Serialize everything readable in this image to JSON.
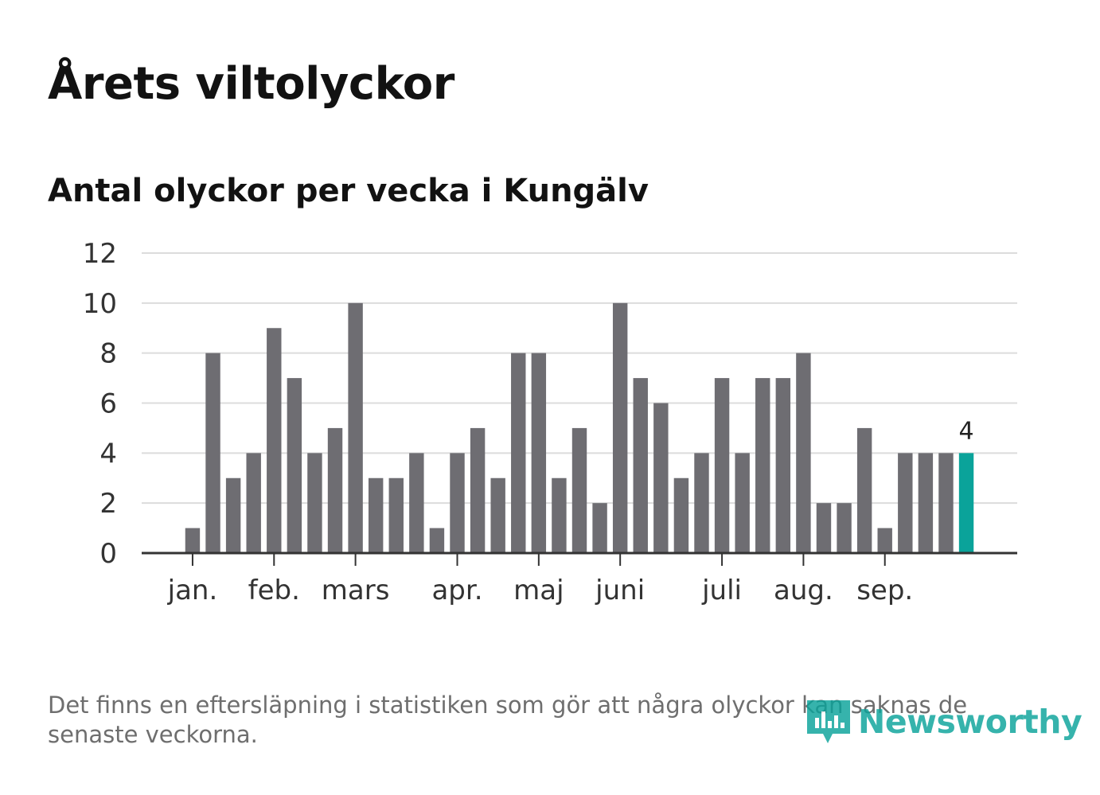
{
  "title": "Årets viltolyckor",
  "subtitle": "Antal olyckor per vecka i Kungälv",
  "footnote": "Det finns en eftersläpning i statistiken som gör att några olyckor kan saknas de senaste veckorna.",
  "brand": {
    "name": "Newsworthy",
    "icon": "newsworthy-logo-icon",
    "color": "#0aa39a"
  },
  "chart_data": {
    "type": "bar",
    "title": "Årets viltolyckor",
    "subtitle": "Antal olyckor per vecka i Kungälv",
    "xlabel": "",
    "ylabel": "",
    "ylim": [
      0,
      12
    ],
    "yticks": [
      0,
      2,
      4,
      6,
      8,
      10,
      12
    ],
    "grid": true,
    "x_slots": 43,
    "first_bar_slot": 2,
    "month_labels": [
      {
        "label": "jan.",
        "slot": 2
      },
      {
        "label": "feb.",
        "slot": 6
      },
      {
        "label": "mars",
        "slot": 10
      },
      {
        "label": "apr.",
        "slot": 15
      },
      {
        "label": "maj",
        "slot": 19
      },
      {
        "label": "juni",
        "slot": 23
      },
      {
        "label": "juli",
        "slot": 28
      },
      {
        "label": "aug.",
        "slot": 32
      },
      {
        "label": "sep.",
        "slot": 36
      }
    ],
    "values": [
      1,
      8,
      3,
      4,
      9,
      7,
      4,
      5,
      10,
      3,
      3,
      4,
      1,
      4,
      5,
      3,
      8,
      8,
      3,
      5,
      2,
      10,
      7,
      6,
      3,
      4,
      7,
      4,
      7,
      7,
      8,
      2,
      2,
      5,
      1,
      4,
      4,
      4,
      4
    ],
    "highlight_last": true,
    "last_value_label": "4",
    "colors": {
      "bar": "#6e6d72",
      "highlight": "#0aa39a",
      "grid": "#dcdcdc",
      "axis": "#333333"
    }
  }
}
